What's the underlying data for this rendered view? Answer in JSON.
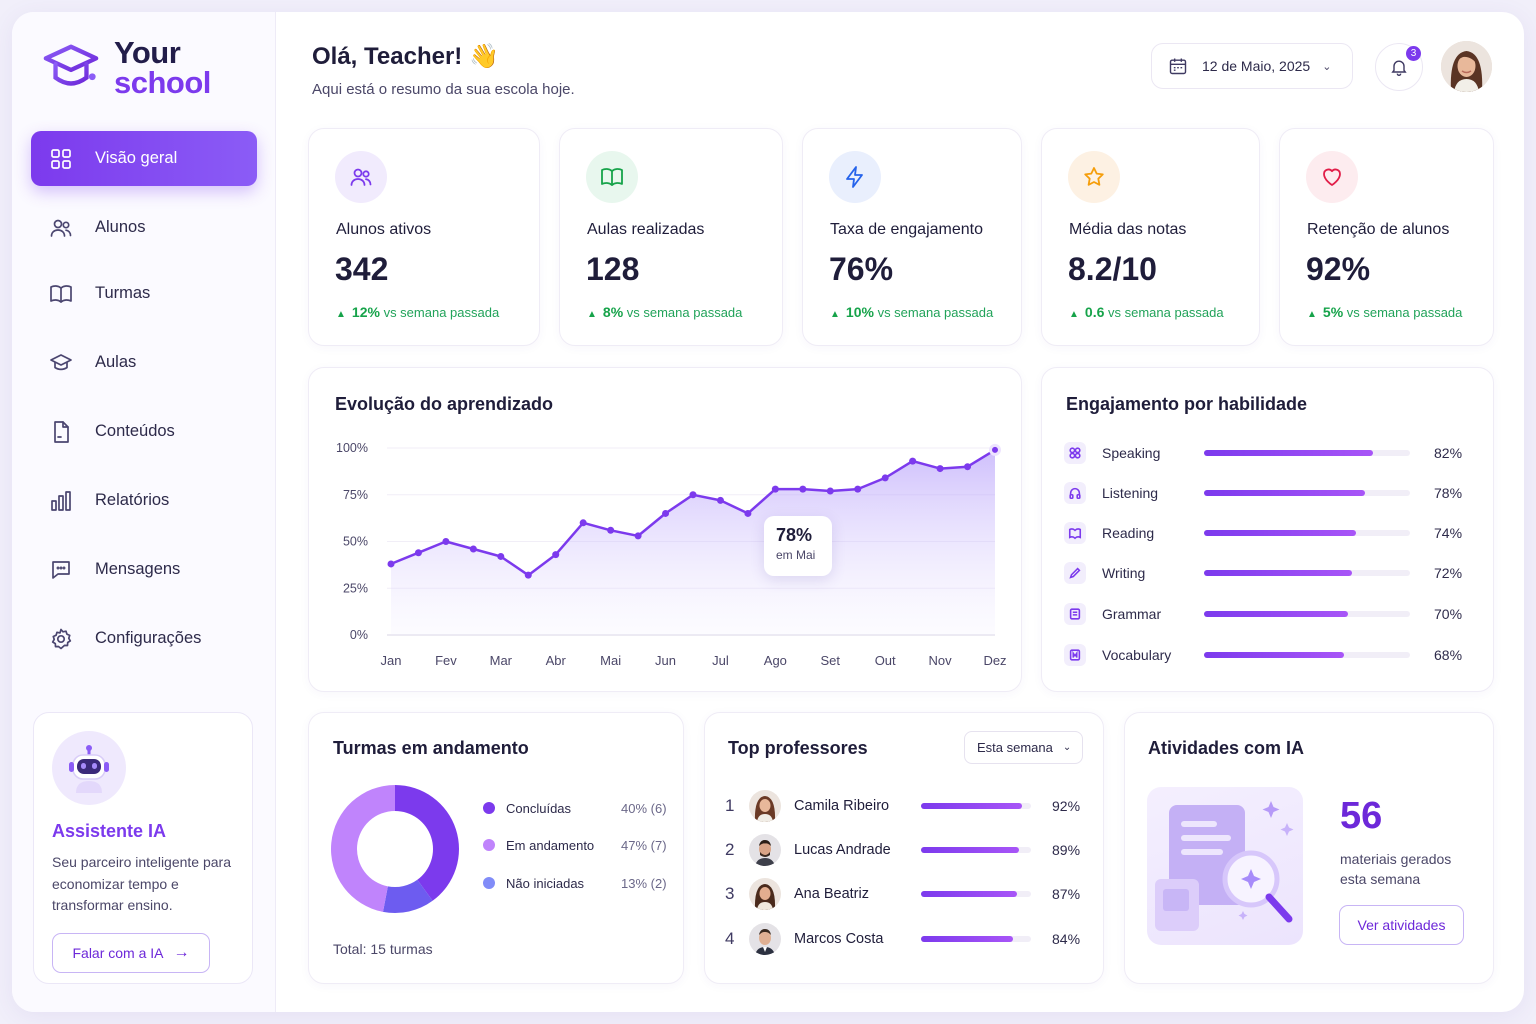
{
  "brand": {
    "line1": "Your",
    "line2": "school"
  },
  "sidebar": {
    "items": [
      {
        "label": "Visão geral",
        "icon": "grid-icon",
        "active": true
      },
      {
        "label": "Alunos",
        "icon": "users-icon"
      },
      {
        "label": "Turmas",
        "icon": "book-icon"
      },
      {
        "label": "Aulas",
        "icon": "graduation-cap-icon"
      },
      {
        "label": "Conteúdos",
        "icon": "file-icon"
      },
      {
        "label": "Relatórios",
        "icon": "bar-chart-icon"
      },
      {
        "label": "Mensagens",
        "icon": "message-icon"
      },
      {
        "label": "Configurações",
        "icon": "gear-icon"
      }
    ],
    "assistant": {
      "title": "Assistente IA",
      "description": "Seu parceiro inteligente para economizar tempo e transformar ensino.",
      "button": "Falar com a IA"
    }
  },
  "header": {
    "greeting": "Olá, Teacher! 👋",
    "subtitle": "Aqui está o resumo da sua escola hoje.",
    "date": "12 de Maio, 2025",
    "notification_count": "3"
  },
  "stats": [
    {
      "label": "Alunos ativos",
      "value": "342",
      "delta": "12%",
      "delta_text": "vs semana passada",
      "icon": "users-icon",
      "color": "#7c3aed",
      "bg": "#f1ebfd"
    },
    {
      "label": "Aulas realizadas",
      "value": "128",
      "delta": "8%",
      "delta_text": "vs semana passada",
      "icon": "book-icon",
      "color": "#16a34a",
      "bg": "#e8f7ee"
    },
    {
      "label": "Taxa de engajamento",
      "value": "76%",
      "delta": "10%",
      "delta_text": "vs semana passada",
      "icon": "bolt-icon",
      "color": "#2563eb",
      "bg": "#e9effd"
    },
    {
      "label": "Média das notas",
      "value": "8.2/10",
      "delta": "0.6",
      "delta_text": "vs semana passada",
      "icon": "star-icon",
      "color": "#f59e0b",
      "bg": "#fdf1e3"
    },
    {
      "label": "Retenção de alunos",
      "value": "92%",
      "delta": "5%",
      "delta_text": "vs semana passada",
      "icon": "heart-icon",
      "color": "#e11d48",
      "bg": "#fdecef"
    }
  ],
  "learning": {
    "title": "Evolução do aprendizado",
    "tooltip_value": "78%",
    "tooltip_label": "em Mai"
  },
  "chart_data": {
    "type": "area",
    "categories": [
      "Jan",
      "Fev",
      "Mar",
      "Abr",
      "Mai",
      "Jun",
      "Jul",
      "Ago",
      "Set",
      "Out",
      "Nov",
      "Dez"
    ],
    "y_ticks": [
      "0%",
      "25%",
      "50%",
      "75%",
      "100%"
    ],
    "ylim": [
      0,
      100
    ],
    "x": [
      0,
      0.5,
      1,
      1.5,
      2,
      2.5,
      3,
      3.5,
      4,
      4.5,
      5,
      5.5,
      6,
      6.5,
      7,
      7.5,
      8,
      8.5,
      9,
      9.5,
      10,
      10.5,
      11
    ],
    "values": [
      38,
      44,
      50,
      46,
      42,
      32,
      43,
      60,
      56,
      53,
      65,
      75,
      72,
      65,
      78,
      78,
      77,
      78,
      84,
      93,
      89,
      90,
      99
    ],
    "color": "#7c3aed"
  },
  "skills": {
    "title": "Engajamento por habilidade",
    "items": [
      {
        "name": "Speaking",
        "value": 82,
        "label": "82%",
        "icon": "speaking-icon"
      },
      {
        "name": "Listening",
        "value": 78,
        "label": "78%",
        "icon": "headphones-icon"
      },
      {
        "name": "Reading",
        "value": 74,
        "label": "74%",
        "icon": "book-open-icon"
      },
      {
        "name": "Writing",
        "value": 72,
        "label": "72%",
        "icon": "pencil-icon"
      },
      {
        "name": "Grammar",
        "value": 70,
        "label": "70%",
        "icon": "grammar-icon"
      },
      {
        "name": "Vocabulary",
        "value": 68,
        "label": "68%",
        "icon": "vocabulary-icon"
      }
    ]
  },
  "classes": {
    "title": "Turmas em andamento",
    "total": "Total: 15 turmas",
    "segments": [
      {
        "name": "Concluídas",
        "value": 40,
        "label": "40% (6)",
        "color": "#7c3aed"
      },
      {
        "name": "Em andamento",
        "value": 47,
        "label": "47% (7)",
        "color": "#c084fc"
      },
      {
        "name": "Não iniciadas",
        "value": 13,
        "label": "13% (2)",
        "color": "#818cf8"
      }
    ]
  },
  "professors": {
    "title": "Top professores",
    "filter": "Esta semana",
    "items": [
      {
        "rank": "1",
        "name": "Camila Ribeiro",
        "value": 92,
        "label": "92%"
      },
      {
        "rank": "2",
        "name": "Lucas Andrade",
        "value": 89,
        "label": "89%"
      },
      {
        "rank": "3",
        "name": "Ana Beatriz",
        "value": 87,
        "label": "87%"
      },
      {
        "rank": "4",
        "name": "Marcos Costa",
        "value": 84,
        "label": "84%"
      }
    ]
  },
  "ai_activities": {
    "title": "Atividades com IA",
    "count": "56",
    "subtitle": "materiais gerados esta semana",
    "button": "Ver atividades"
  }
}
